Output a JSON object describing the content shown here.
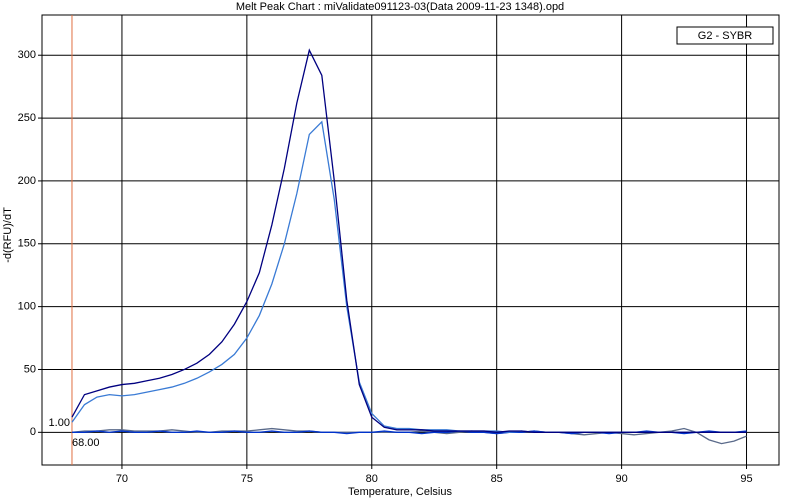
{
  "chart_data": {
    "type": "line",
    "title": "Melt Peak Chart : miValidate091123-03(Data 2009-11-23 1348).opd",
    "x_label": "Temperature, Celsius",
    "y_label": "-d(RFU)/dT",
    "legend": "G2 - SYBR",
    "legend_position": "upper right",
    "grid": true,
    "xlim": [
      66.8,
      96.3
    ],
    "ylim": [
      -26,
      332
    ],
    "xticks": [
      70,
      75,
      80,
      85,
      90,
      95
    ],
    "yticks": [
      0,
      50,
      100,
      150,
      200,
      250,
      300
    ],
    "marker": {
      "x": {
        "value": 68,
        "label": "68.00"
      },
      "y": {
        "value": 1,
        "label": "1.00"
      },
      "color": "#e07040"
    },
    "x": [
      68,
      68.5,
      69,
      69.5,
      70,
      70.5,
      71,
      71.5,
      72,
      72.5,
      73,
      73.5,
      74,
      74.5,
      75,
      75.5,
      76,
      76.5,
      77,
      77.5,
      78,
      78.5,
      79,
      79.5,
      80,
      80.5,
      81,
      81.5,
      82,
      82.5,
      83,
      83.5,
      84,
      84.5,
      85,
      85.5,
      86,
      86.5,
      87,
      87.5,
      88,
      88.5,
      89,
      89.5,
      90,
      90.5,
      91,
      91.5,
      92,
      92.5,
      93,
      93.5,
      94,
      94.5,
      95
    ],
    "series": [
      {
        "color": "#5a6a8a",
        "values": [
          0,
          1,
          1,
          2,
          2,
          1,
          1,
          1,
          2,
          1,
          0,
          0,
          1,
          1,
          1,
          2,
          3,
          2,
          1,
          1,
          0,
          0,
          0,
          0,
          0,
          0,
          0,
          0,
          1,
          0,
          -1,
          0,
          1,
          0,
          -1,
          0,
          0,
          1,
          0,
          0,
          -1,
          -2,
          -1,
          0,
          -1,
          -2,
          -1,
          0,
          1,
          3,
          0,
          -6,
          -9,
          -7,
          -3
        ]
      },
      {
        "color": "#0033cc",
        "values": [
          0,
          0,
          1,
          0,
          1,
          0,
          0,
          1,
          0,
          0,
          1,
          0,
          0,
          1,
          0,
          0,
          1,
          0,
          0,
          1,
          0,
          0,
          -1,
          0,
          0,
          1,
          0,
          0,
          -1,
          0,
          0,
          1,
          0,
          0,
          -1,
          0,
          0,
          1,
          0,
          0,
          -1,
          0,
          0,
          -1,
          0,
          0,
          1,
          0,
          0,
          -1,
          0,
          1,
          0,
          0,
          1
        ]
      },
      {
        "color": "#3a7bd5",
        "values": [
          8,
          22,
          28,
          30,
          29,
          30,
          32,
          34,
          36,
          39,
          43,
          48,
          54,
          62,
          75,
          93,
          118,
          150,
          190,
          237,
          247,
          185,
          100,
          40,
          15,
          5,
          3,
          3,
          2,
          2,
          2,
          1,
          1,
          1,
          1,
          0,
          1,
          0,
          0,
          0,
          0,
          0,
          0,
          0,
          0,
          0,
          0,
          0,
          0,
          0,
          0,
          0,
          0,
          0,
          0
        ]
      },
      {
        "color": "#000080",
        "values": [
          12,
          30,
          33,
          36,
          38,
          39,
          41,
          43,
          46,
          50,
          55,
          62,
          72,
          86,
          104,
          127,
          165,
          210,
          262,
          304,
          284,
          200,
          105,
          38,
          12,
          4,
          2,
          2,
          2,
          1,
          1,
          1,
          1,
          1,
          0,
          1,
          1,
          0,
          0,
          0,
          0,
          0,
          0,
          0,
          0,
          0,
          0,
          0,
          0,
          0,
          0,
          0,
          0,
          0,
          0
        ]
      }
    ]
  }
}
